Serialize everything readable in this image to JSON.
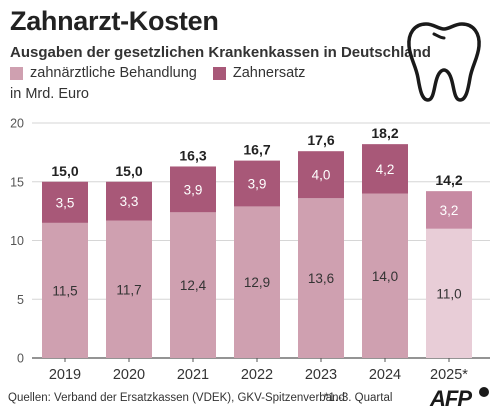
{
  "header": {
    "title": "Zahnarzt-Kosten",
    "subtitle": "Ausgaben der gesetzlichen Krankenkassen in Deutschland",
    "unit": "in Mrd. Euro"
  },
  "legend": {
    "items": [
      {
        "label": "zahnärztliche Behandlung",
        "color": "#cfa0b0"
      },
      {
        "label": "Zahnersatz",
        "color": "#a85878"
      }
    ]
  },
  "icons": {
    "tooth": "tooth-icon"
  },
  "footer": {
    "source": "Quellen: Verband der Ersatzkassen (VDEK), GKV-Spitzenverband",
    "footnote": "*1.-3. Quartal",
    "logo": "AFP"
  },
  "chart_data": {
    "type": "bar",
    "stacked": true,
    "categories": [
      "2019",
      "2020",
      "2021",
      "2022",
      "2023",
      "2024",
      "2025*"
    ],
    "series": [
      {
        "name": "zahnärztliche Behandlung",
        "values": [
          11.5,
          11.7,
          12.4,
          12.9,
          13.6,
          14.0,
          11.0
        ],
        "labels": [
          "11,5",
          "11,7",
          "12,4",
          "12,9",
          "13,6",
          "14,0",
          "11,0"
        ]
      },
      {
        "name": "Zahnersatz",
        "values": [
          3.5,
          3.3,
          3.9,
          3.9,
          4.0,
          4.2,
          3.2
        ],
        "labels": [
          "3,5",
          "3,3",
          "3,9",
          "3,9",
          "4,0",
          "4,2",
          "3,2"
        ]
      }
    ],
    "totals": [
      15.0,
      15.0,
      16.3,
      16.7,
      17.6,
      18.2,
      14.2
    ],
    "total_labels": [
      "15,0",
      "15,0",
      "16,3",
      "16,7",
      "17,6",
      "18,2",
      "14,2"
    ],
    "ylim": [
      0,
      20
    ],
    "yticks": [
      0,
      5,
      10,
      15,
      20
    ],
    "grid": true,
    "colors": {
      "behandlung": "#cfa0b0",
      "zahnersatz": "#a85878",
      "behandlung_partial": "#e8cdd7",
      "zahnersatz_partial": "#c78aa3"
    }
  }
}
